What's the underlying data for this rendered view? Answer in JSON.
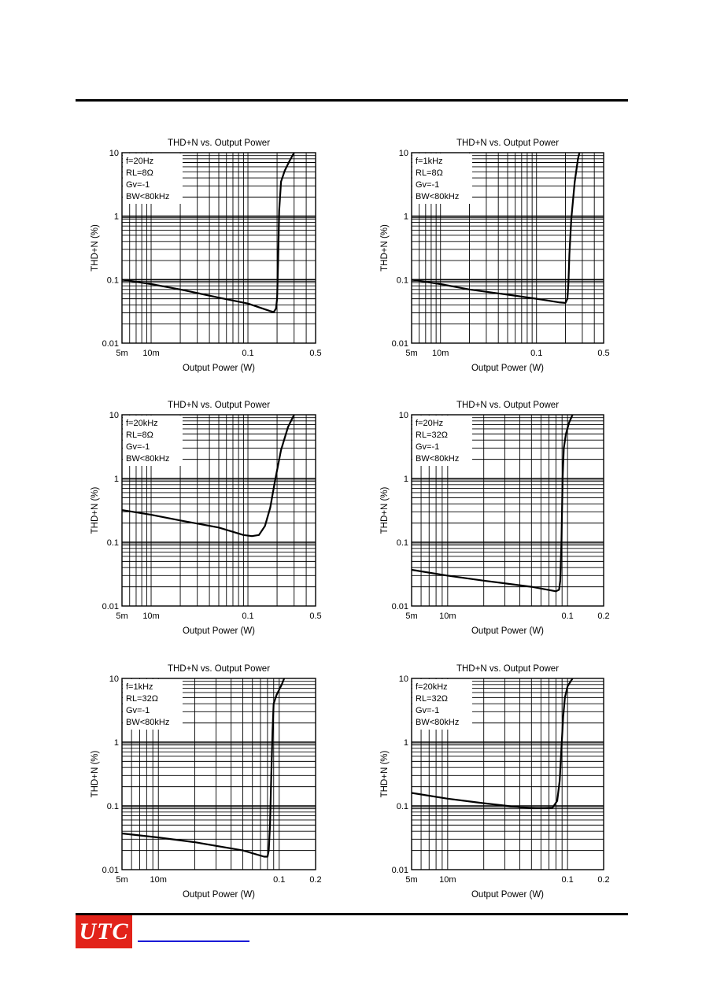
{
  "footer": {
    "logo_text": "UTC"
  },
  "chart_data": [
    {
      "type": "line",
      "title": "THD+N vs. Output Power",
      "xlabel": "Output Power (W)",
      "ylabel": "THD+N (%)",
      "x_scale": "log",
      "y_scale": "log",
      "xlim": [
        0.005,
        0.5
      ],
      "ylim": [
        0.01,
        10
      ],
      "x_ticks": [
        {
          "v": 0.005,
          "t": "5m"
        },
        {
          "v": 0.01,
          "t": "10m"
        },
        {
          "v": 0.1,
          "t": "0.1"
        },
        {
          "v": 0.5,
          "t": "0.5"
        }
      ],
      "y_ticks": [
        {
          "v": 0.01,
          "t": "0.01"
        },
        {
          "v": 0.1,
          "t": "0.1"
        },
        {
          "v": 1,
          "t": "1"
        },
        {
          "v": 10,
          "t": "10"
        }
      ],
      "annotations": [
        "f=20Hz",
        "RL=8Ω",
        "Gv=-1",
        "BW<80kHz"
      ],
      "grid": true,
      "series": [
        {
          "x": [
            0.005,
            0.01,
            0.02,
            0.05,
            0.1,
            0.17,
            0.185,
            0.195,
            0.2,
            0.205,
            0.21,
            0.22,
            0.24,
            0.27,
            0.3
          ],
          "y": [
            0.1,
            0.085,
            0.07,
            0.052,
            0.042,
            0.032,
            0.031,
            0.035,
            0.05,
            0.2,
            1.2,
            3.5,
            5.2,
            7.5,
            10
          ]
        }
      ]
    },
    {
      "type": "line",
      "title": "THD+N vs. Output Power",
      "xlabel": "Output Power (W)",
      "ylabel": "THD+N (%)",
      "x_scale": "log",
      "y_scale": "log",
      "xlim": [
        0.005,
        0.5
      ],
      "ylim": [
        0.01,
        10
      ],
      "x_ticks": [
        {
          "v": 0.005,
          "t": "5m"
        },
        {
          "v": 0.01,
          "t": "10m"
        },
        {
          "v": 0.1,
          "t": "0.1"
        },
        {
          "v": 0.5,
          "t": "0.5"
        }
      ],
      "y_ticks": [
        {
          "v": 0.01,
          "t": "0.01"
        },
        {
          "v": 0.1,
          "t": "0.1"
        },
        {
          "v": 1,
          "t": "1"
        },
        {
          "v": 10,
          "t": "10"
        }
      ],
      "annotations": [
        "f=1kHz",
        "RL=8Ω",
        "Gv=-1",
        "BW<80kHz"
      ],
      "grid": true,
      "series": [
        {
          "x": [
            0.005,
            0.01,
            0.02,
            0.05,
            0.1,
            0.17,
            0.2,
            0.21,
            0.215,
            0.22,
            0.23,
            0.25,
            0.27,
            0.28
          ],
          "y": [
            0.1,
            0.085,
            0.07,
            0.058,
            0.05,
            0.044,
            0.043,
            0.05,
            0.09,
            0.25,
            0.9,
            3.5,
            8.0,
            10
          ]
        }
      ]
    },
    {
      "type": "line",
      "title": "THD+N vs. Output Power",
      "xlabel": "Output Power (W)",
      "ylabel": "THD+N (%)",
      "x_scale": "log",
      "y_scale": "log",
      "xlim": [
        0.005,
        0.5
      ],
      "ylim": [
        0.01,
        10
      ],
      "x_ticks": [
        {
          "v": 0.005,
          "t": "5m"
        },
        {
          "v": 0.01,
          "t": "10m"
        },
        {
          "v": 0.1,
          "t": "0.1"
        },
        {
          "v": 0.5,
          "t": "0.5"
        }
      ],
      "y_ticks": [
        {
          "v": 0.01,
          "t": "0.01"
        },
        {
          "v": 0.1,
          "t": "0.1"
        },
        {
          "v": 1,
          "t": "1"
        },
        {
          "v": 10,
          "t": "10"
        }
      ],
      "annotations": [
        "f=20kHz",
        "RL=8Ω",
        "Gv=-1",
        "BW<80kHz"
      ],
      "grid": true,
      "series": [
        {
          "x": [
            0.005,
            0.01,
            0.02,
            0.05,
            0.09,
            0.11,
            0.13,
            0.15,
            0.17,
            0.19,
            0.22,
            0.26,
            0.3
          ],
          "y": [
            0.32,
            0.27,
            0.22,
            0.17,
            0.13,
            0.125,
            0.13,
            0.18,
            0.35,
            0.9,
            2.8,
            6.5,
            10
          ]
        }
      ]
    },
    {
      "type": "line",
      "title": "THD+N vs. Output Power",
      "xlabel": "Output Power (W)",
      "ylabel": "THD+N (%)",
      "x_scale": "log",
      "y_scale": "log",
      "xlim": [
        0.005,
        0.2
      ],
      "ylim": [
        0.01,
        10
      ],
      "x_ticks": [
        {
          "v": 0.005,
          "t": "5m"
        },
        {
          "v": 0.01,
          "t": "10m"
        },
        {
          "v": 0.1,
          "t": "0.1"
        },
        {
          "v": 0.2,
          "t": "0.2"
        }
      ],
      "y_ticks": [
        {
          "v": 0.01,
          "t": "0.01"
        },
        {
          "v": 0.1,
          "t": "0.1"
        },
        {
          "v": 1,
          "t": "1"
        },
        {
          "v": 10,
          "t": "10"
        }
      ],
      "annotations": [
        "f=20Hz",
        "RL=32Ω",
        "Gv=-1",
        "BW<80kHz"
      ],
      "grid": true,
      "series": [
        {
          "x": [
            0.005,
            0.01,
            0.02,
            0.05,
            0.08,
            0.085,
            0.087,
            0.089,
            0.091,
            0.093,
            0.097,
            0.103,
            0.11
          ],
          "y": [
            0.037,
            0.03,
            0.025,
            0.02,
            0.017,
            0.018,
            0.025,
            0.1,
            1.0,
            3.0,
            5.0,
            7.5,
            10
          ]
        }
      ]
    },
    {
      "type": "line",
      "title": "THD+N vs. Output Power",
      "xlabel": "Output Power (W)",
      "ylabel": "THD+N (%)",
      "x_scale": "log",
      "y_scale": "log",
      "xlim": [
        0.005,
        0.2
      ],
      "ylim": [
        0.01,
        10
      ],
      "x_ticks": [
        {
          "v": 0.005,
          "t": "5m"
        },
        {
          "v": 0.01,
          "t": "10m"
        },
        {
          "v": 0.1,
          "t": "0.1"
        },
        {
          "v": 0.2,
          "t": "0.2"
        }
      ],
      "y_ticks": [
        {
          "v": 0.01,
          "t": "0.01"
        },
        {
          "v": 0.1,
          "t": "0.1"
        },
        {
          "v": 1,
          "t": "1"
        },
        {
          "v": 10,
          "t": "10"
        }
      ],
      "annotations": [
        "f=1kHz",
        "RL=32Ω",
        "Gv=-1",
        "BW<80kHz"
      ],
      "grid": true,
      "series": [
        {
          "x": [
            0.005,
            0.01,
            0.02,
            0.05,
            0.075,
            0.08,
            0.082,
            0.084,
            0.086,
            0.088,
            0.09,
            0.095,
            0.105,
            0.11
          ],
          "y": [
            0.037,
            0.032,
            0.027,
            0.02,
            0.016,
            0.016,
            0.02,
            0.05,
            0.3,
            1.5,
            4.0,
            5.5,
            8.0,
            10
          ]
        }
      ]
    },
    {
      "type": "line",
      "title": "THD+N vs. Output Power",
      "xlabel": "Output Power (W)",
      "ylabel": "THD+N (%)",
      "x_scale": "log",
      "y_scale": "log",
      "xlim": [
        0.005,
        0.2
      ],
      "ylim": [
        0.01,
        10
      ],
      "x_ticks": [
        {
          "v": 0.005,
          "t": "5m"
        },
        {
          "v": 0.01,
          "t": "10m"
        },
        {
          "v": 0.1,
          "t": "0.1"
        },
        {
          "v": 0.2,
          "t": "0.2"
        }
      ],
      "y_ticks": [
        {
          "v": 0.01,
          "t": "0.01"
        },
        {
          "v": 0.1,
          "t": "0.1"
        },
        {
          "v": 1,
          "t": "1"
        },
        {
          "v": 10,
          "t": "10"
        }
      ],
      "annotations": [
        "f=20kHz",
        "RL=32Ω",
        "Gv=-1",
        "BW<80kHz"
      ],
      "grid": true,
      "series": [
        {
          "x": [
            0.005,
            0.01,
            0.02,
            0.04,
            0.06,
            0.075,
            0.082,
            0.086,
            0.089,
            0.092,
            0.095,
            0.1,
            0.11
          ],
          "y": [
            0.16,
            0.13,
            0.11,
            0.095,
            0.092,
            0.094,
            0.12,
            0.25,
            0.8,
            2.5,
            5.0,
            7.5,
            10
          ]
        }
      ]
    }
  ]
}
